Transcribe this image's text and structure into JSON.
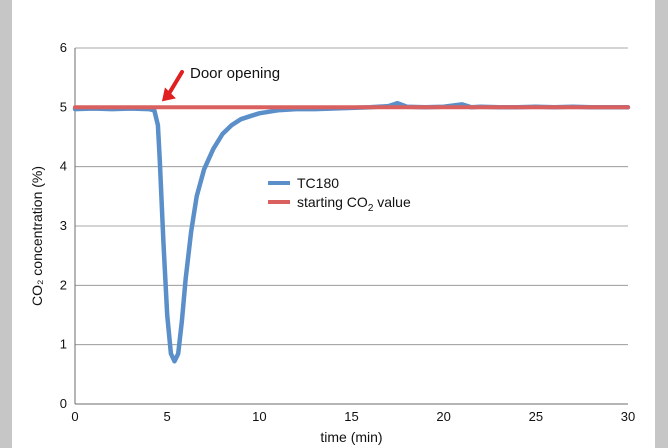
{
  "chart_data": {
    "type": "line",
    "title": "",
    "xlabel": "time (min)",
    "ylabel": "CO₂ concentration (%)",
    "xlim": [
      0,
      30
    ],
    "ylim": [
      0,
      6
    ],
    "x_ticks": [
      0,
      5,
      10,
      15,
      20,
      25,
      30
    ],
    "y_ticks": [
      0,
      1,
      2,
      3,
      4,
      5,
      6
    ],
    "grid": "horizontal",
    "legend_position": "center",
    "annotation": {
      "text": "Door opening",
      "x": 4.5,
      "y": 5.0
    },
    "series": [
      {
        "name": "TC180",
        "label_main": "TC180",
        "color": "#5b8fc9",
        "x": [
          0,
          1,
          2,
          3,
          4,
          4.3,
          4.5,
          4.6,
          4.8,
          5.0,
          5.2,
          5.4,
          5.6,
          5.8,
          6.0,
          6.3,
          6.6,
          7.0,
          7.5,
          8.0,
          8.5,
          9.0,
          9.5,
          10.0,
          11.0,
          12.0,
          13.0,
          14.0,
          15.0,
          16.0,
          17.0,
          17.5,
          18.0,
          19.0,
          20.0,
          21.0,
          21.5,
          22.0,
          23.0,
          24.0,
          25.0,
          26.0,
          27.0,
          28.0,
          29.0,
          30.0
        ],
        "values": [
          4.97,
          4.98,
          4.97,
          4.98,
          4.97,
          4.95,
          4.7,
          4.1,
          2.7,
          1.5,
          0.85,
          0.72,
          0.85,
          1.4,
          2.1,
          2.9,
          3.5,
          3.95,
          4.3,
          4.55,
          4.7,
          4.8,
          4.85,
          4.9,
          4.95,
          4.97,
          4.97,
          4.98,
          4.99,
          5.0,
          5.02,
          5.07,
          5.01,
          5.0,
          5.01,
          5.05,
          5.0,
          5.01,
          5.0,
          5.0,
          5.01,
          5.0,
          5.01,
          5.0,
          5.0,
          5.0
        ]
      },
      {
        "name": "starting CO2 value",
        "label_main": "starting CO",
        "label_sub": "2",
        "label_tail": " value",
        "color": "#d9605e",
        "x": [
          0,
          30
        ],
        "values": [
          5.0,
          5.0
        ]
      }
    ]
  }
}
